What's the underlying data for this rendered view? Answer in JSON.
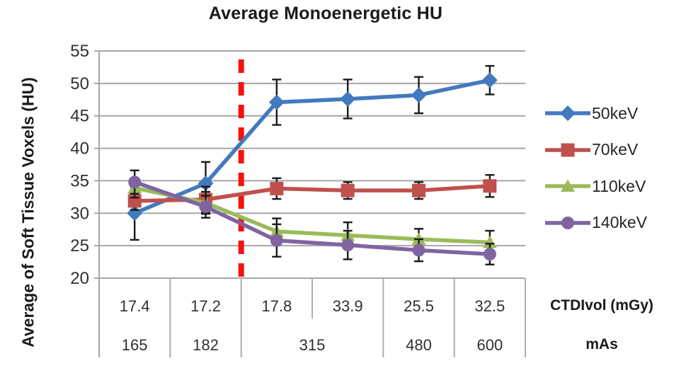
{
  "chart_data": {
    "type": "line",
    "title": "Average Monoenergetic HU",
    "ylabel": "Average of Soft Tissue Voxels (HU)",
    "ylim": [
      20,
      55
    ],
    "yticks": [
      55,
      50,
      45,
      40,
      35,
      30,
      25,
      20
    ],
    "grid": true,
    "legend_position": "right",
    "axis_table": {
      "rows": [
        {
          "label": "CTDIvol (mGy)",
          "cells": [
            {
              "text": "17.4",
              "span": 1
            },
            {
              "text": "17.2",
              "span": 1
            },
            {
              "text": "17.8",
              "span": 1
            },
            {
              "text": "33.9",
              "span": 1
            },
            {
              "text": "25.5",
              "span": 1
            },
            {
              "text": "32.5",
              "span": 1
            }
          ]
        },
        {
          "label": "mAs",
          "cells": [
            {
              "text": "165",
              "span": 1
            },
            {
              "text": "182",
              "span": 1
            },
            {
              "text": "315",
              "span": 2
            },
            {
              "text": "480",
              "span": 1
            },
            {
              "text": "600",
              "span": 1
            }
          ]
        }
      ]
    },
    "reference_line": {
      "orientation": "vertical",
      "position_after_category": 2,
      "style": "dashed",
      "color": "#F5120D"
    },
    "series": [
      {
        "name": "50keV",
        "color": "#4379BE",
        "marker": "diamond",
        "values": [
          30.0,
          34.6,
          47.1,
          47.6,
          48.2,
          50.5
        ],
        "errors": [
          4.1,
          3.3,
          3.5,
          3.0,
          2.8,
          2.2
        ]
      },
      {
        "name": "70keV",
        "color": "#C0504D",
        "marker": "square",
        "values": [
          31.9,
          32.1,
          33.8,
          33.5,
          33.5,
          34.2
        ],
        "errors": [
          1.4,
          2.0,
          1.6,
          1.3,
          1.3,
          1.7
        ]
      },
      {
        "name": "110keV",
        "color": "#9BBB59",
        "marker": "triangle",
        "values": [
          33.9,
          31.6,
          27.2,
          26.6,
          26.0,
          25.5
        ],
        "errors": [
          1.5,
          1.7,
          2.0,
          2.0,
          1.6,
          1.8
        ]
      },
      {
        "name": "140keV",
        "color": "#8064A2",
        "marker": "circle",
        "values": [
          34.8,
          31.0,
          25.8,
          25.1,
          24.3,
          23.7
        ],
        "errors": [
          1.8,
          1.7,
          2.5,
          2.2,
          1.7,
          1.6
        ]
      }
    ],
    "colors": {
      "gridline": "#A6A6A6",
      "axis_line": "#A6A6A6",
      "table_line": "#ADADAD",
      "tick_text": "#303030",
      "title_text": "#1A1A1A",
      "error_bar": "#1A1A1A"
    }
  }
}
